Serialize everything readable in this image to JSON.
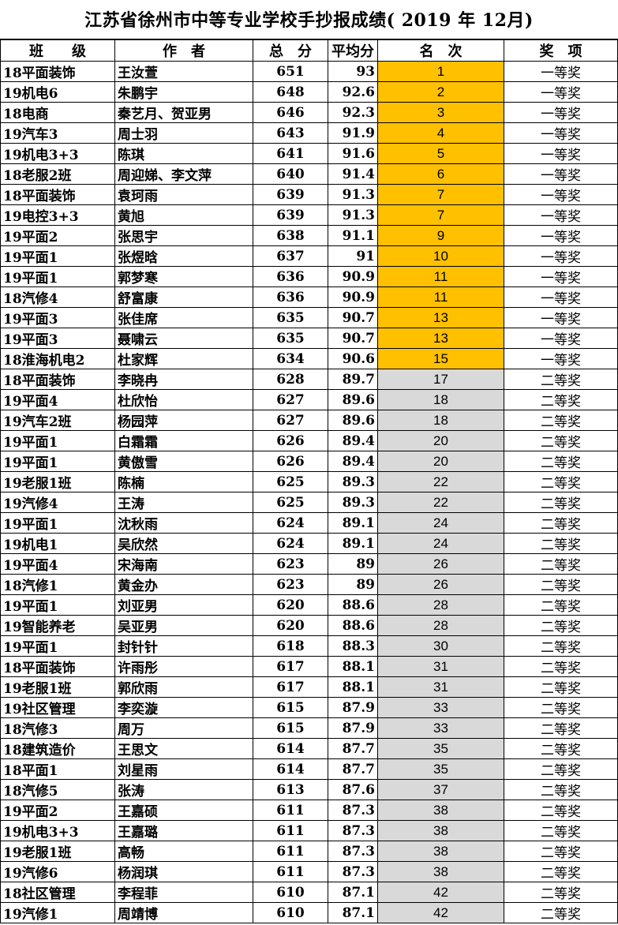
{
  "title": "江苏省徐州市中等专业学校手抄报成绩( 2019 年 12月)",
  "colors": {
    "first_prize_rank_bg": "#FFC000",
    "second_prize_rank_bg": "#D9D9D9"
  },
  "headers": [
    "班　　级",
    "作　者",
    "总　分",
    "平均分",
    "名　次",
    "奖　项"
  ],
  "rows": [
    [
      "18平面装饰",
      "王汝萱",
      "651",
      "93",
      "1",
      "一等奖"
    ],
    [
      "19机电6",
      "朱鹏宇",
      "648",
      "92.6",
      "2",
      "一等奖"
    ],
    [
      "18电商",
      "秦艺月、贺亚男",
      "646",
      "92.3",
      "3",
      "一等奖"
    ],
    [
      "19汽车3",
      "周士羽",
      "643",
      "91.9",
      "4",
      "一等奖"
    ],
    [
      "19机电3+3",
      "陈琪",
      "641",
      "91.6",
      "5",
      "一等奖"
    ],
    [
      "18老服2班",
      "周迎娣、李文萍",
      "640",
      "91.4",
      "6",
      "一等奖"
    ],
    [
      "18平面装饰",
      "袁珂雨",
      "639",
      "91.3",
      "7",
      "一等奖"
    ],
    [
      "19电控3+3",
      "黄旭",
      "639",
      "91.3",
      "7",
      "一等奖"
    ],
    [
      "19平面2",
      "张思宇",
      "638",
      "91.1",
      "9",
      "一等奖"
    ],
    [
      "19平面1",
      "张煜晗",
      "637",
      "91",
      "10",
      "一等奖"
    ],
    [
      "19平面1",
      "郭梦寒",
      "636",
      "90.9",
      "11",
      "一等奖"
    ],
    [
      "18汽修4",
      "舒富康",
      "636",
      "90.9",
      "11",
      "一等奖"
    ],
    [
      "19平面3",
      "张佳席",
      "635",
      "90.7",
      "13",
      "一等奖"
    ],
    [
      "19平面3",
      "聂啸云",
      "635",
      "90.7",
      "13",
      "一等奖"
    ],
    [
      "18淮海机电2",
      "杜家辉",
      "634",
      "90.6",
      "15",
      "一等奖"
    ],
    [
      "18平面装饰",
      "李晓冉",
      "628",
      "89.7",
      "17",
      "二等奖"
    ],
    [
      "19平面4",
      "杜欣怡",
      "627",
      "89.6",
      "18",
      "二等奖"
    ],
    [
      "19汽车2班",
      "杨园萍",
      "627",
      "89.6",
      "18",
      "二等奖"
    ],
    [
      "19平面1",
      "白霜霜",
      "626",
      "89.4",
      "20",
      "二等奖"
    ],
    [
      "19平面1",
      "黄傲雪",
      "626",
      "89.4",
      "20",
      "二等奖"
    ],
    [
      "19老服1班",
      "陈楠",
      "625",
      "89.3",
      "22",
      "二等奖"
    ],
    [
      "19汽修4",
      "王涛",
      "625",
      "89.3",
      "22",
      "二等奖"
    ],
    [
      "19平面1",
      "沈秋雨",
      "624",
      "89.1",
      "24",
      "二等奖"
    ],
    [
      "19机电1",
      "吴欣然",
      "624",
      "89.1",
      "24",
      "二等奖"
    ],
    [
      "19平面4",
      "宋海南",
      "623",
      "89",
      "26",
      "二等奖"
    ],
    [
      "18汽修1",
      "黄金办",
      "623",
      "89",
      "26",
      "二等奖"
    ],
    [
      "19平面1",
      "刘亚男",
      "620",
      "88.6",
      "28",
      "二等奖"
    ],
    [
      "19智能养老",
      "吴亚男",
      "620",
      "88.6",
      "28",
      "二等奖"
    ],
    [
      "19平面1",
      "封针针",
      "618",
      "88.3",
      "30",
      "二等奖"
    ],
    [
      "18平面装饰",
      "许雨彤",
      "617",
      "88.1",
      "31",
      "二等奖"
    ],
    [
      "19老服1班",
      "郭欣雨",
      "617",
      "88.1",
      "31",
      "二等奖"
    ],
    [
      "19社区管理",
      "李奕漩",
      "615",
      "87.9",
      "33",
      "二等奖"
    ],
    [
      "18汽修3",
      "周万",
      "615",
      "87.9",
      "33",
      "二等奖"
    ],
    [
      "18建筑造价",
      "王思文",
      "614",
      "87.7",
      "35",
      "二等奖"
    ],
    [
      "18平面1",
      "刘星雨",
      "614",
      "87.7",
      "35",
      "二等奖"
    ],
    [
      "18汽修5",
      "张涛",
      "613",
      "87.6",
      "37",
      "二等奖"
    ],
    [
      "19平面2",
      "王嘉硕",
      "611",
      "87.3",
      "38",
      "二等奖"
    ],
    [
      "19机电3+3",
      "王嘉璐",
      "611",
      "87.3",
      "38",
      "二等奖"
    ],
    [
      "19老服1班",
      "高畅",
      "611",
      "87.3",
      "38",
      "二等奖"
    ],
    [
      "19汽修6",
      "杨润琪",
      "611",
      "87.3",
      "38",
      "二等奖"
    ],
    [
      "18社区管理",
      "李程菲",
      "610",
      "87.1",
      "42",
      "二等奖"
    ],
    [
      "19汽修1",
      "周靖博",
      "610",
      "87.1",
      "42",
      "二等奖"
    ]
  ]
}
